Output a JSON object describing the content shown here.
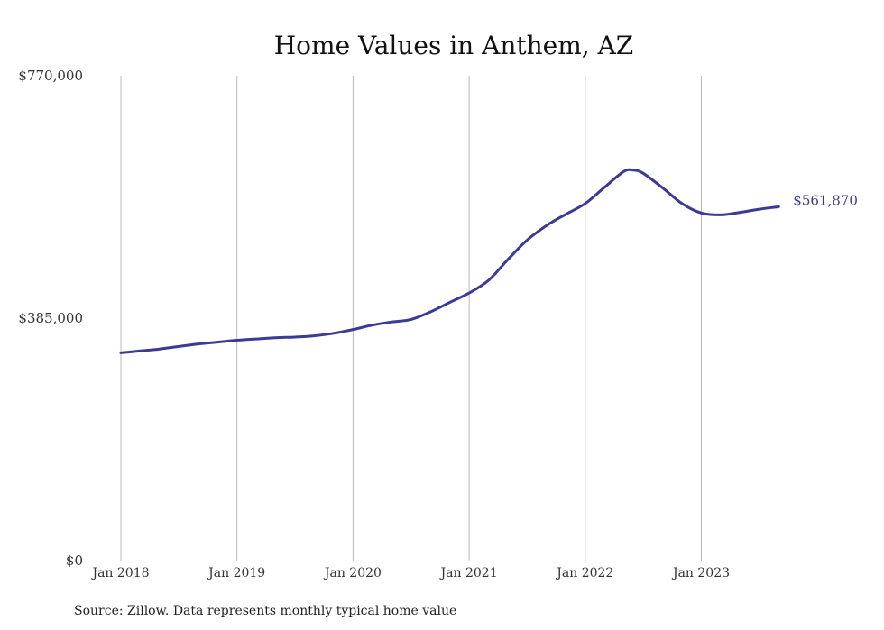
{
  "chart_data": {
    "type": "line",
    "title": "Home Values in Anthem, AZ",
    "xlabel": "",
    "ylabel": "",
    "ylim": [
      0,
      770000
    ],
    "y_ticks": [
      "$0",
      "$385,000",
      "$770,000"
    ],
    "x_ticks": [
      "Jan 2018",
      "Jan 2019",
      "Jan 2020",
      "Jan 2021",
      "Jan 2022",
      "Jan 2023"
    ],
    "grid": "vertical",
    "line_color": "#3c3a96",
    "end_label": "$561,870",
    "source_note": "Source: Zillow. Data represents monthly typical home value",
    "series": [
      {
        "x": [
          "2018-01",
          "2018-03",
          "2018-05",
          "2018-07",
          "2018-09",
          "2018-11",
          "2019-01",
          "2019-03",
          "2019-05",
          "2019-07",
          "2019-09",
          "2019-11",
          "2020-01",
          "2020-03",
          "2020-05",
          "2020-07",
          "2020-09",
          "2020-11",
          "2021-01",
          "2021-03",
          "2021-05",
          "2021-07",
          "2021-09",
          "2021-11",
          "2022-01",
          "2022-03",
          "2022-05",
          "2022-06",
          "2022-07",
          "2022-09",
          "2022-11",
          "2023-01",
          "2023-03",
          "2023-05",
          "2023-07",
          "2023-09"
        ],
        "values": [
          330000,
          333000,
          336000,
          340000,
          344000,
          347000,
          350000,
          352000,
          354000,
          355000,
          357000,
          361000,
          367000,
          374000,
          379000,
          383000,
          395000,
          410000,
          425000,
          445000,
          478000,
          509000,
          532000,
          550000,
          567000,
          593000,
          618000,
          620000,
          615000,
          592000,
          567000,
          552000,
          549000,
          553000,
          558000,
          561870
        ]
      }
    ]
  }
}
